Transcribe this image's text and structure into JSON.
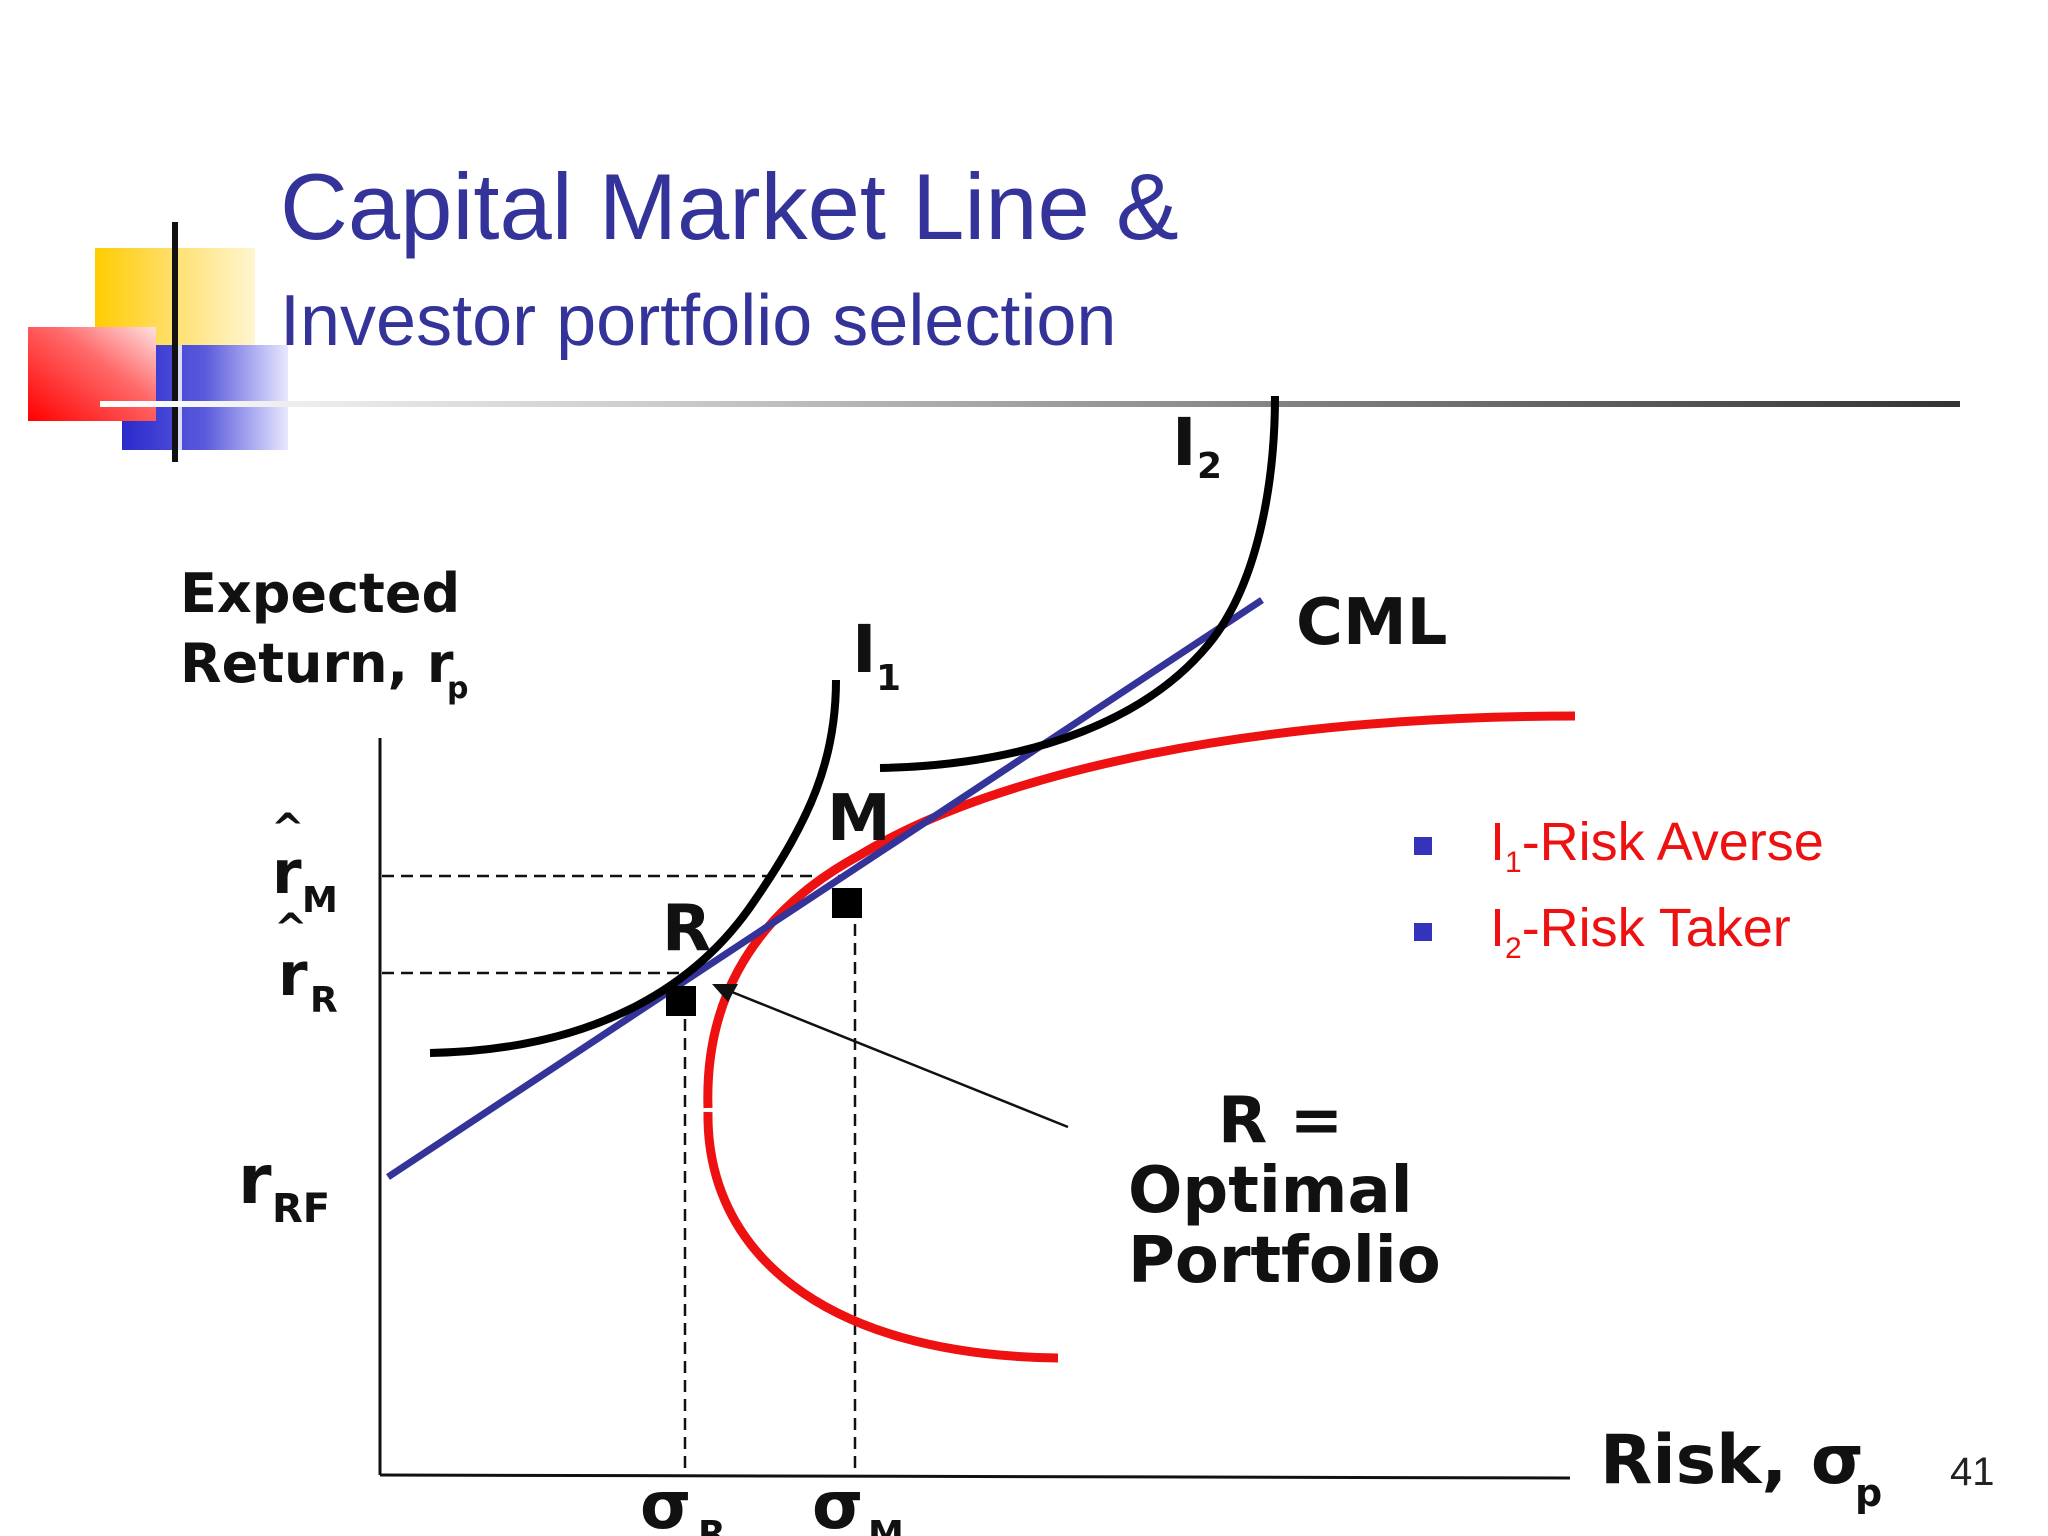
{
  "slide": {
    "title_line1": "Capital Market Line &",
    "title_line2": "Investor portfolio selection",
    "page_number": "41"
  },
  "axes": {
    "y_label_line1": "Expected",
    "y_label_line2": "Return, r",
    "y_label_sub": "p",
    "x_label": "Risk, σ",
    "x_label_sub": "p"
  },
  "y_ticks": {
    "rM": "r",
    "rM_hat": "^",
    "rM_sub": "M",
    "rR": "r",
    "rR_hat": "^",
    "rR_sub": "R",
    "rRF": "r",
    "rRF_sub": "RF"
  },
  "x_ticks": {
    "sR": "σ",
    "sR_sub": "R",
    "sM": "σ",
    "sM_sub": "M"
  },
  "curves": {
    "cml_label": "CML",
    "i1_label": "I",
    "i1_sub": "1",
    "i2_label": "I",
    "i2_sub": "2",
    "point_M": "M",
    "point_R": "R"
  },
  "annotation": {
    "line1": "R =",
    "line2": "Optimal",
    "line3": "Portfolio"
  },
  "legend": {
    "item1_main": "I",
    "item1_sub": "1",
    "item1_rest": "-Risk Averse",
    "item2_main": "I",
    "item2_sub": "2",
    "item2_rest": "-Risk Taker"
  },
  "colors": {
    "title": "#333399",
    "cml": "#333399",
    "frontier": "#ee1111",
    "indifference": "#000000",
    "legend_text": "#ee1111",
    "legend_bullet": "#3333bb"
  }
}
